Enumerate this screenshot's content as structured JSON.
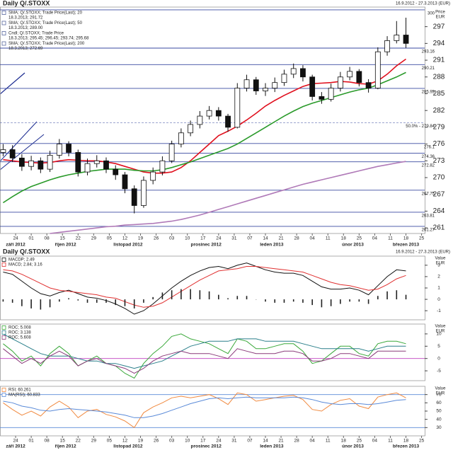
{
  "chart_data": [
    {
      "type": "candlestick",
      "title": "Daily Q/.STOXX",
      "subtitle": "16.9.2012 - 27.3.2013 (EUR)",
      "ylabel": "Price",
      "yunit": "EUR",
      "candle_name": "Cndl; Q/.STOXX; Trade Price",
      "candle_legend_value": "18.3.2013; 295.45; 296.45; 293.74; 295.68",
      "x": [
        1,
        4,
        7,
        10,
        13,
        16,
        19,
        22,
        25,
        28,
        31,
        34,
        37,
        40,
        43,
        46,
        49,
        52,
        55,
        58,
        61,
        64,
        67,
        70,
        73,
        76,
        79,
        82,
        85,
        88,
        91,
        94,
        97,
        100,
        103,
        106,
        109,
        112,
        115,
        118,
        121,
        124,
        127,
        130
      ],
      "open": [
        274.5,
        275,
        273.5,
        272,
        273,
        271.5,
        274,
        276,
        274.5,
        271,
        272.5,
        273,
        271.5,
        270.5,
        268,
        265,
        269.5,
        271,
        273,
        276,
        278,
        279.5,
        281,
        282,
        281,
        279,
        286,
        287.5,
        285.5,
        286,
        287,
        288.5,
        289.5,
        288,
        284.5,
        284,
        286,
        288,
        289,
        287,
        286,
        292.5,
        294.5,
        295.5
      ],
      "high": [
        276,
        275.8,
        274.2,
        273.9,
        273.6,
        274.8,
        276.9,
        276.5,
        275,
        273.4,
        274,
        273.6,
        272.2,
        271,
        268.6,
        270.2,
        271.8,
        273.8,
        276.6,
        278.8,
        280.2,
        281.9,
        282.8,
        282.6,
        281.4,
        286.9,
        288.4,
        288,
        286.9,
        287.9,
        289.3,
        290.4,
        290.1,
        288.4,
        285.3,
        286.8,
        288.9,
        289.8,
        289.4,
        287.6,
        293.3,
        295.3,
        298,
        298.6
      ],
      "low": [
        273.8,
        272.8,
        271.2,
        271.3,
        270.8,
        271,
        273.4,
        273.8,
        270.2,
        270.4,
        271.8,
        270.8,
        269.6,
        267.2,
        263.6,
        264.6,
        268.8,
        270.4,
        272.6,
        275.4,
        277.4,
        278.8,
        280.4,
        280.2,
        278.2,
        278.8,
        285.4,
        284.8,
        284.6,
        285.3,
        286.4,
        287.8,
        287.2,
        283.8,
        283.2,
        283.6,
        285.4,
        287.4,
        286.3,
        285.2,
        285.8,
        291.8,
        294,
        293.2
      ],
      "close": [
        275,
        273.5,
        272,
        273,
        271.5,
        274,
        276,
        274.5,
        271,
        272.5,
        273,
        271.5,
        270.5,
        268,
        265,
        269.5,
        271,
        273,
        276,
        278,
        279.5,
        281,
        282,
        281,
        279,
        286,
        287.5,
        285.5,
        286,
        287,
        288.5,
        289.5,
        288,
        284.5,
        284,
        286,
        288,
        289,
        287,
        286,
        292.5,
        294.5,
        295.5,
        294
      ],
      "series": [
        {
          "name": "SMA; Q/.STOXX; Trade Price(Last); 20",
          "legend_value": "18.3.2013; 291.72",
          "color": "#e0101e",
          "values": [
            273.2,
            273,
            272.8,
            272.7,
            272.6,
            272.7,
            273,
            273.2,
            273.1,
            273,
            273,
            272.8,
            272.5,
            272,
            271.5,
            271,
            270.8,
            270.8,
            271,
            271.8,
            273,
            274.5,
            276,
            277.5,
            278.3,
            279.2,
            280.3,
            281.5,
            282.8,
            283.8,
            284.7,
            285.5,
            286.3,
            286.8,
            286.9,
            287,
            287.2,
            287.1,
            286.8,
            286.7,
            287.3,
            288.5,
            290,
            291.2
          ]
        },
        {
          "name": "SMA; Q/.STOXX; Trade Price(Last); 50",
          "legend_value": "18.3.2013; 289.00",
          "color": "#2a9a2a",
          "values": [
            265.5,
            266.6,
            267.6,
            268.4,
            269,
            269.6,
            270.1,
            270.5,
            270.8,
            271.1,
            271.3,
            271.5,
            271.5,
            271.5,
            271.3,
            271.2,
            271.2,
            271.4,
            271.8,
            272.3,
            272.8,
            273.4,
            274,
            274.6,
            275.2,
            276,
            277,
            278,
            279,
            280,
            281,
            281.9,
            282.7,
            283.3,
            283.8,
            284.3,
            284.8,
            285.3,
            285.7,
            286,
            286.6,
            287.3,
            288,
            288.8
          ]
        },
        {
          "name": "SMA; Q/.STOXX; Trade Price(Last); 200",
          "legend_value": "18.3.2013; 272.69",
          "color": "#b07ab8",
          "values": [
            null,
            null,
            null,
            null,
            null,
            260,
            260.2,
            260.4,
            260.6,
            260.8,
            261,
            261.2,
            261.3,
            261.5,
            261.6,
            261.7,
            261.8,
            262,
            262.2,
            262.5,
            262.9,
            263.3,
            263.8,
            264.3,
            264.8,
            265.3,
            265.8,
            266.3,
            266.8,
            267.3,
            267.8,
            268.3,
            268.8,
            269.2,
            269.6,
            270,
            270.4,
            270.8,
            271.2,
            271.6,
            272,
            272.3,
            272.6,
            272.9
          ]
        }
      ],
      "xlim": [
        0,
        136
      ],
      "xticks": [
        {
          "value": 5,
          "label": "24"
        },
        {
          "value": 10,
          "label": "01"
        },
        {
          "value": 15,
          "label": "08"
        },
        {
          "value": 20,
          "label": "15"
        },
        {
          "value": 25,
          "label": "22"
        },
        {
          "value": 30,
          "label": "29"
        },
        {
          "value": 35,
          "label": "05"
        },
        {
          "value": 40,
          "label": "12"
        },
        {
          "value": 45,
          "label": "19"
        },
        {
          "value": 50,
          "label": "26"
        },
        {
          "value": 55,
          "label": "03"
        },
        {
          "value": 60,
          "label": "10"
        },
        {
          "value": 65,
          "label": "17"
        },
        {
          "value": 70,
          "label": "24"
        },
        {
          "value": 75,
          "label": "31"
        },
        {
          "value": 80,
          "label": "07"
        },
        {
          "value": 85,
          "label": "14"
        },
        {
          "value": 90,
          "label": "21"
        },
        {
          "value": 95,
          "label": "28"
        },
        {
          "value": 100,
          "label": "04"
        },
        {
          "value": 105,
          "label": "11"
        },
        {
          "value": 110,
          "label": "18"
        },
        {
          "value": 115,
          "label": "25"
        },
        {
          "value": 120,
          "label": "04"
        },
        {
          "value": 125,
          "label": "11"
        },
        {
          "value": 130,
          "label": "18"
        },
        {
          "value": 135,
          "label": "25"
        }
      ],
      "month_labels": [
        {
          "value": 5,
          "label": "září 2012"
        },
        {
          "value": 21,
          "label": "říjen 2012"
        },
        {
          "value": 41,
          "label": "listopad 2012"
        },
        {
          "value": 66,
          "label": "prosinec 2012"
        },
        {
          "value": 87,
          "label": "leden 2013"
        },
        {
          "value": 113,
          "label": "únor 2013"
        },
        {
          "value": 130,
          "label": "březen 2013"
        }
      ],
      "ylim": [
        260,
        300.5
      ],
      "yticks": [
        261,
        264,
        267,
        270,
        273,
        276,
        279,
        282,
        285,
        288,
        291,
        294,
        297
      ],
      "levels": [
        300,
        293.16,
        290.21,
        285.95,
        {
          "value": 279.84,
          "label": "50.0% - 279.84"
        },
        276.1,
        274.36,
        272.82,
        267.75,
        263.81,
        261.27
      ],
      "level_color": "#3a4aa0",
      "level_labels": true
    },
    {
      "type": "line",
      "title": "Daily Q/.STOXX",
      "subtitle": "16.9.2012 - 27.3.2013 (EUR)",
      "ylabel": "Value",
      "yunit": "EUR",
      "ylim": [
        -1.8,
        3.8
      ],
      "yticks": [
        -1,
        0,
        1,
        2,
        3
      ],
      "series": [
        {
          "name": "MACDP; 2.49",
          "color": "#111111",
          "values": [
            2.4,
            2.2,
            1.6,
            1.0,
            0.5,
            0.3,
            0.6,
            0.8,
            0.5,
            0.2,
            0.1,
            -0.1,
            -0.4,
            -0.8,
            -1.3,
            -1.0,
            -0.4,
            0.3,
            1.0,
            1.6,
            2.1,
            2.5,
            2.8,
            2.9,
            2.7,
            3.0,
            3.2,
            2.9,
            2.6,
            2.4,
            2.3,
            2.3,
            2.1,
            1.6,
            1.1,
            0.9,
            0.9,
            1.0,
            0.8,
            0.4,
            1.2,
            2.0,
            2.6,
            2.5
          ]
        },
        {
          "name": "MACD; 2.84; 3.16",
          "color": "#e03030",
          "values": [
            2.6,
            2.5,
            2.2,
            1.8,
            1.4,
            1.0,
            0.8,
            0.7,
            0.6,
            0.5,
            0.4,
            0.2,
            0.1,
            -0.2,
            -0.5,
            -0.7,
            -0.6,
            -0.3,
            0.2,
            0.7,
            1.2,
            1.7,
            2.1,
            2.5,
            2.6,
            2.7,
            2.9,
            2.9,
            2.8,
            2.7,
            2.6,
            2.5,
            2.4,
            2.1,
            1.8,
            1.5,
            1.3,
            1.2,
            1.0,
            0.8,
            0.9,
            1.3,
            1.8,
            2.1
          ]
        },
        {
          "style": "bar",
          "color": "#222222",
          "values": [
            -0.2,
            -0.3,
            -0.6,
            -0.8,
            -0.9,
            -0.7,
            -0.2,
            0.1,
            -0.1,
            -0.3,
            -0.3,
            -0.3,
            -0.5,
            -0.6,
            -0.8,
            -0.3,
            0.2,
            0.6,
            0.8,
            0.9,
            0.9,
            0.8,
            0.7,
            0.4,
            0.1,
            0.3,
            0.3,
            0,
            -0.2,
            -0.3,
            -0.3,
            -0.2,
            -0.3,
            -0.5,
            -0.7,
            -0.6,
            -0.4,
            -0.2,
            -0.2,
            -0.4,
            0.3,
            0.7,
            0.8,
            0.4
          ]
        }
      ]
    },
    {
      "type": "line",
      "ylabel": "Value",
      "yunit": "EUR",
      "ylim": [
        -9,
        14
      ],
      "yticks": [
        -5,
        0,
        5,
        10
      ],
      "levels": [
        0
      ],
      "level_color": "#c040c0",
      "series": [
        {
          "name": "ROC; 5.008",
          "color": "#3aa83a",
          "values": [
            6,
            3,
            -1,
            1,
            -3,
            2,
            5,
            2,
            -3,
            -1,
            1,
            -2,
            -3,
            -6,
            -8,
            -2,
            2,
            5,
            9,
            10,
            8,
            7,
            6,
            4,
            2,
            8,
            7,
            4,
            4,
            5,
            6,
            6,
            3,
            -2,
            -1,
            2,
            5,
            5,
            2,
            1,
            6,
            7,
            7,
            6
          ]
        },
        {
          "name": "ROC; 3.138",
          "color": "#2a7f8a",
          "values": [
            10,
            8,
            6,
            4,
            2,
            1,
            1,
            1,
            0,
            -1,
            -1,
            -2,
            -2,
            -3,
            -4,
            -3,
            -2,
            -1,
            1,
            3,
            5,
            6,
            7,
            7,
            7,
            8,
            8,
            8,
            7,
            7,
            7,
            7,
            6,
            5,
            4,
            4,
            4,
            4,
            4,
            3,
            4,
            5,
            5,
            5
          ]
        },
        {
          "name": "ROC; 5.608",
          "color": "#8a3a7a",
          "values": [
            4,
            1,
            -2,
            0,
            -2,
            1,
            3,
            1,
            -3,
            -1,
            0,
            -2,
            -3,
            -4,
            -6,
            -4,
            -1,
            1,
            2,
            3,
            2,
            2,
            2,
            1,
            0,
            4,
            3,
            2,
            2,
            2,
            3,
            3,
            2,
            -1,
            -1,
            0,
            2,
            2,
            1,
            0,
            3,
            3,
            3,
            3
          ]
        }
      ]
    },
    {
      "type": "line",
      "ylabel": "Value",
      "yunit": "EUR",
      "ylim": [
        20,
        80
      ],
      "yticks": [
        30,
        40,
        50,
        60,
        70
      ],
      "levels": [
        70,
        30
      ],
      "level_color": "#5a8ad8",
      "series": [
        {
          "name": "RSI; 60.261",
          "color": "#f08a40",
          "values": [
            60,
            52,
            45,
            50,
            44,
            55,
            62,
            55,
            42,
            50,
            52,
            46,
            43,
            38,
            30,
            48,
            55,
            60,
            66,
            68,
            66,
            68,
            70,
            65,
            58,
            72,
            70,
            62,
            64,
            66,
            68,
            69,
            64,
            52,
            50,
            58,
            63,
            65,
            56,
            53,
            67,
            70,
            72,
            66
          ]
        },
        {
          "name": "MA(RSI); 60.833",
          "color": "#5a8ad8",
          "values": [
            62,
            60,
            56,
            54,
            51,
            50,
            52,
            53,
            52,
            51,
            50,
            49,
            47,
            45,
            42,
            42,
            44,
            47,
            51,
            55,
            59,
            62,
            65,
            66,
            65,
            66,
            67,
            66,
            66,
            66,
            66,
            67,
            66,
            64,
            61,
            59,
            58,
            59,
            59,
            58,
            59,
            61,
            63,
            64
          ]
        }
      ]
    }
  ]
}
